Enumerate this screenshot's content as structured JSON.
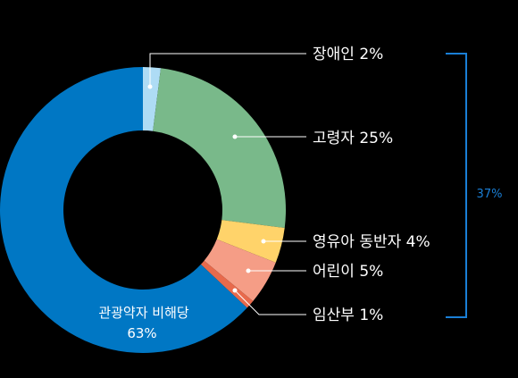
{
  "chart_data": {
    "type": "pie",
    "style": "donut",
    "slices": [
      {
        "label": "관광약자 비해당",
        "value": 63,
        "display": "63%",
        "color": "#0077c4"
      },
      {
        "label": "장애인",
        "value": 2,
        "display": "2%",
        "color": "#aedcf5"
      },
      {
        "label": "고령자",
        "value": 25,
        "display": "25%",
        "color": "#79b98a"
      },
      {
        "label": "영유아 동반자",
        "value": 4,
        "display": "4%",
        "color": "#ffd36a"
      },
      {
        "label": "어린이",
        "value": 5,
        "display": "5%",
        "color": "#f59d86"
      },
      {
        "label": "임산부",
        "value": 1,
        "display": "1%",
        "color": "#e86a4c"
      }
    ],
    "group_total": {
      "label": "37%",
      "color": "#1a7fd6"
    }
  },
  "labels": {
    "not_applicable_name": "관광약자 비해당",
    "not_applicable_pct": "63%",
    "disabled": "장애인 2%",
    "elderly": "고령자 25%",
    "infant_companion": "영유아 동반자 4%",
    "children": "어린이 5%",
    "pregnant": "임산부 1%",
    "group_total": "37%"
  }
}
